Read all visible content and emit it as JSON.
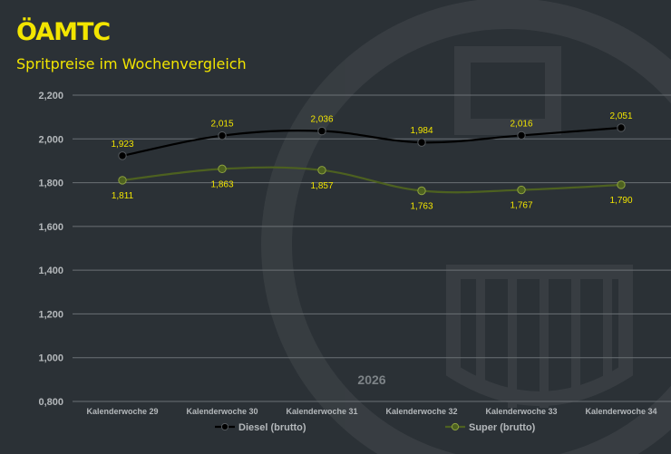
{
  "header": {
    "logo_text": "ÖAMTC",
    "subtitle": "Spritpreise im Wochenvergleich"
  },
  "colors": {
    "background": "#2b3136",
    "brand_yellow": "#f2e500",
    "diesel_line": "#000000",
    "super_line": "#4d6120",
    "gridline": "#6b7175",
    "axis_text": "#b4b8bb",
    "data_label": "#f2e500"
  },
  "chart_data": {
    "type": "line",
    "title": "",
    "year_label": "2026",
    "xlabel": "",
    "ylabel": "",
    "categories": [
      "Kalenderwoche 29",
      "Kalenderwoche 30",
      "Kalenderwoche 31",
      "Kalenderwoche 32",
      "Kalenderwoche 33",
      "Kalenderwoche 34"
    ],
    "ylim": [
      0.8,
      2.2
    ],
    "ytick_labels": [
      "0,800",
      "1,000",
      "1,200",
      "1,400",
      "1,600",
      "1,800",
      "2,000",
      "2,200"
    ],
    "grid": true,
    "legend_position": "bottom",
    "series": [
      {
        "name": "Diesel (brutto)",
        "values": [
          1.923,
          2.015,
          2.036,
          1.984,
          2.016,
          2.051
        ],
        "labels": [
          "1,923",
          "2,015",
          "2,036",
          "1,984",
          "2,016",
          "2,051"
        ],
        "color": "#000000",
        "label_position": "above"
      },
      {
        "name": "Super (brutto)",
        "values": [
          1.811,
          1.863,
          1.857,
          1.763,
          1.767,
          1.79
        ],
        "labels": [
          "1,811",
          "1,863",
          "1,857",
          "1,763",
          "1,767",
          "1,790"
        ],
        "color": "#4d6120",
        "label_position": "below"
      }
    ]
  }
}
